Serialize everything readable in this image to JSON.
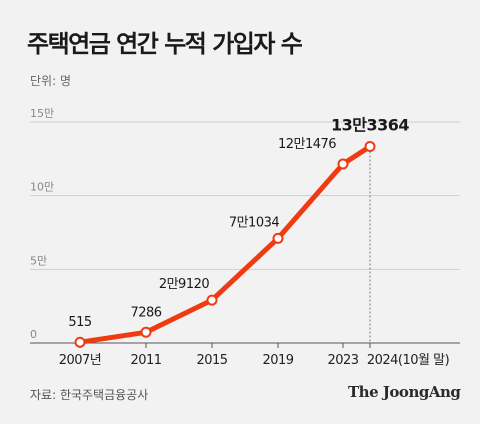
{
  "title": "주택연금 연간 누적 가입자 수",
  "unit_label": "단위: 명",
  "source": "자료: 한국주택금융공사",
  "brand": "The JoongAng",
  "colors": {
    "line": "#ef3b12",
    "marker_fill": "#ffffff",
    "grid": "#cfcfcf",
    "guide": "#777777"
  },
  "chart_data": {
    "type": "line",
    "title": "주택연금 연간 누적 가입자 수",
    "categories": [
      "2007년",
      "2011",
      "2015",
      "2019",
      "2023",
      "2024(10월 말)"
    ],
    "values": [
      515,
      7286,
      29120,
      71034,
      121476,
      133364
    ],
    "data_labels": [
      "515",
      "7286",
      "2만9120",
      "7만1034",
      "12만1476",
      "13만3364"
    ],
    "yticks": [
      0,
      50000,
      100000,
      150000
    ],
    "ytick_labels": [
      "0",
      "5만",
      "10만",
      "15만"
    ],
    "ylim": [
      0,
      150000
    ],
    "grid": true,
    "legend": "none",
    "highlight_last": true
  }
}
